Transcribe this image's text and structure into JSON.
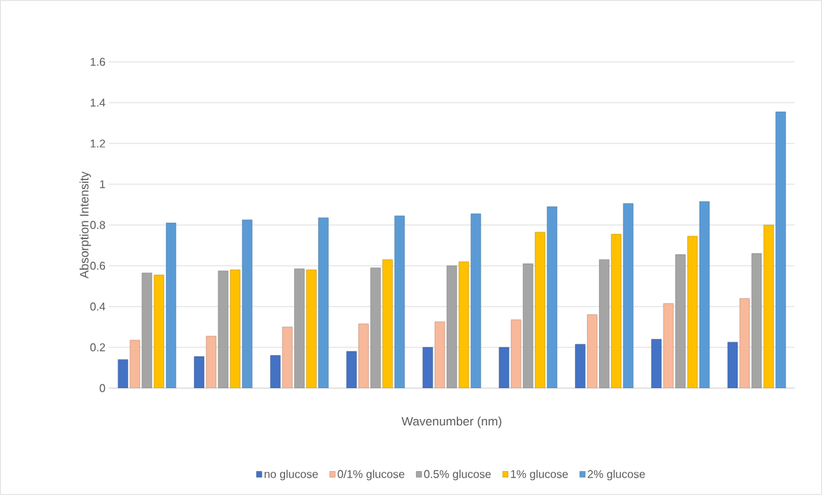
{
  "chart_data": {
    "type": "bar",
    "xlabel": "Wavenumber (nm)",
    "ylabel": "Absorption Intensity",
    "categories": [
      null,
      null,
      null,
      null,
      null,
      null,
      null,
      null,
      null
    ],
    "series": [
      {
        "name": "no glucose",
        "color": "#4472c4",
        "values": [
          0.14,
          0.155,
          0.16,
          0.18,
          0.2,
          0.2,
          0.215,
          0.24,
          0.225
        ]
      },
      {
        "name": "0/1% glucose",
        "color": "#f8b89a",
        "values": [
          0.235,
          0.255,
          0.3,
          0.315,
          0.325,
          0.335,
          0.36,
          0.415,
          0.44
        ]
      },
      {
        "name": "0.5% glucose",
        "color": "#a5a5a5",
        "values": [
          0.565,
          0.575,
          0.585,
          0.59,
          0.6,
          0.61,
          0.63,
          0.655,
          0.66
        ]
      },
      {
        "name": "1% glucose",
        "color": "#ffc000",
        "values": [
          0.555,
          0.58,
          0.58,
          0.63,
          0.62,
          0.765,
          0.755,
          0.745,
          0.8
        ]
      },
      {
        "name": "2% glucose",
        "color": "#5b9bd5",
        "values": [
          0.81,
          0.825,
          0.835,
          0.845,
          0.855,
          0.89,
          0.905,
          0.915,
          1.355
        ]
      }
    ],
    "ylim": [
      0,
      1.6
    ],
    "yticks": [
      0,
      0.2,
      0.4,
      0.6,
      0.8,
      1,
      1.2,
      1.4,
      1.6
    ],
    "grid": "y",
    "legend": "bottom"
  }
}
